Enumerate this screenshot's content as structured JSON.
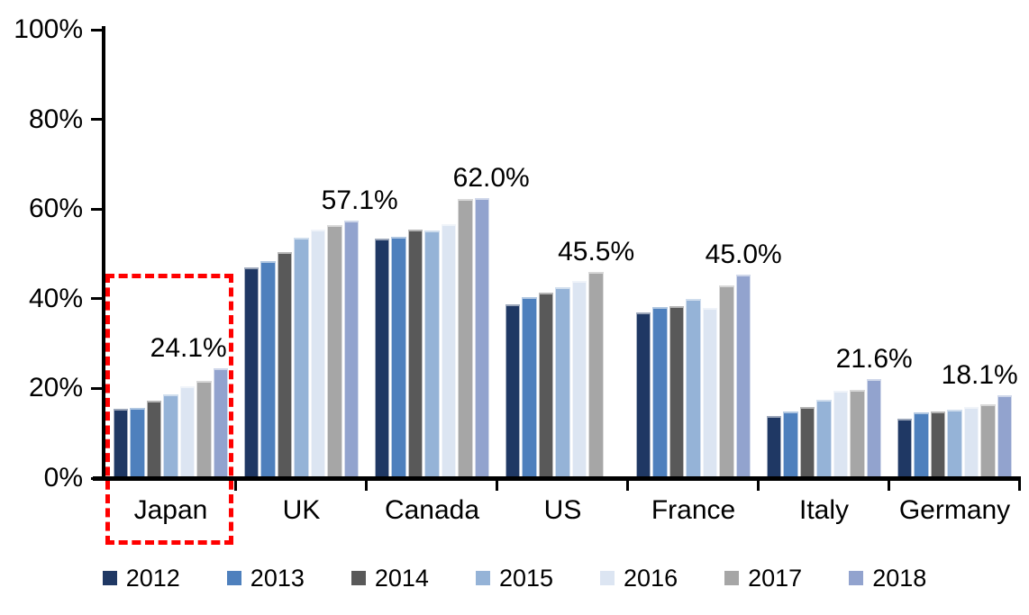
{
  "chart_data": {
    "type": "bar",
    "title": "",
    "xlabel": "",
    "ylabel": "",
    "categories": [
      "Japan",
      "UK",
      "Canada",
      "US",
      "France",
      "Italy",
      "Germany"
    ],
    "series": [
      {
        "name": "2012",
        "color": "#1F3864",
        "values": [
          15.1,
          46.5,
          53.0,
          38.3,
          36.5,
          13.5,
          12.8
        ]
      },
      {
        "name": "2013",
        "color": "#4E80BD",
        "values": [
          15.3,
          48.0,
          53.5,
          40.0,
          37.8,
          14.4,
          14.2
        ]
      },
      {
        "name": "2014",
        "color": "#595959",
        "values": [
          16.9,
          50.0,
          55.0,
          41.0,
          38.0,
          15.5,
          14.5
        ]
      },
      {
        "name": "2015",
        "color": "#95B3D7",
        "values": [
          18.2,
          53.2,
          54.8,
          42.1,
          39.5,
          17.0,
          14.9
        ]
      },
      {
        "name": "2016",
        "color": "#DCE5F2",
        "values": [
          20.0,
          55.0,
          56.3,
          43.5,
          37.5,
          19.1,
          15.4
        ]
      },
      {
        "name": "2017",
        "color": "#A6A6A6",
        "values": [
          21.3,
          56.1,
          61.8,
          45.5,
          42.5,
          19.3,
          16.0
        ]
      },
      {
        "name": "2018",
        "color": "#92A3CE",
        "values": [
          24.1,
          57.1,
          62.0,
          null,
          45.0,
          21.6,
          18.1
        ]
      }
    ],
    "ylim": [
      0,
      100
    ],
    "yticks": [
      "0%",
      "20%",
      "40%",
      "60%",
      "80%",
      "100%"
    ],
    "grid": false,
    "legend_position": "bottom",
    "annotations": [
      {
        "text": "24.1%",
        "category": "Japan",
        "dx": -36
      },
      {
        "text": "57.1%",
        "category": "UK",
        "dx": 9
      },
      {
        "text": "62.0%",
        "category": "Canada",
        "dx": 10
      },
      {
        "text": "45.5%",
        "category": "US",
        "dx": 0
      },
      {
        "text": "45.0%",
        "category": "France",
        "dx": 0
      },
      {
        "text": "21.6%",
        "category": "Italy",
        "dx": 0
      },
      {
        "text": "18.1%",
        "category": "Germany",
        "dx": -28
      }
    ],
    "highlight_box": {
      "category": "Japan",
      "color": "#FF0000",
      "style": "dashed"
    }
  }
}
